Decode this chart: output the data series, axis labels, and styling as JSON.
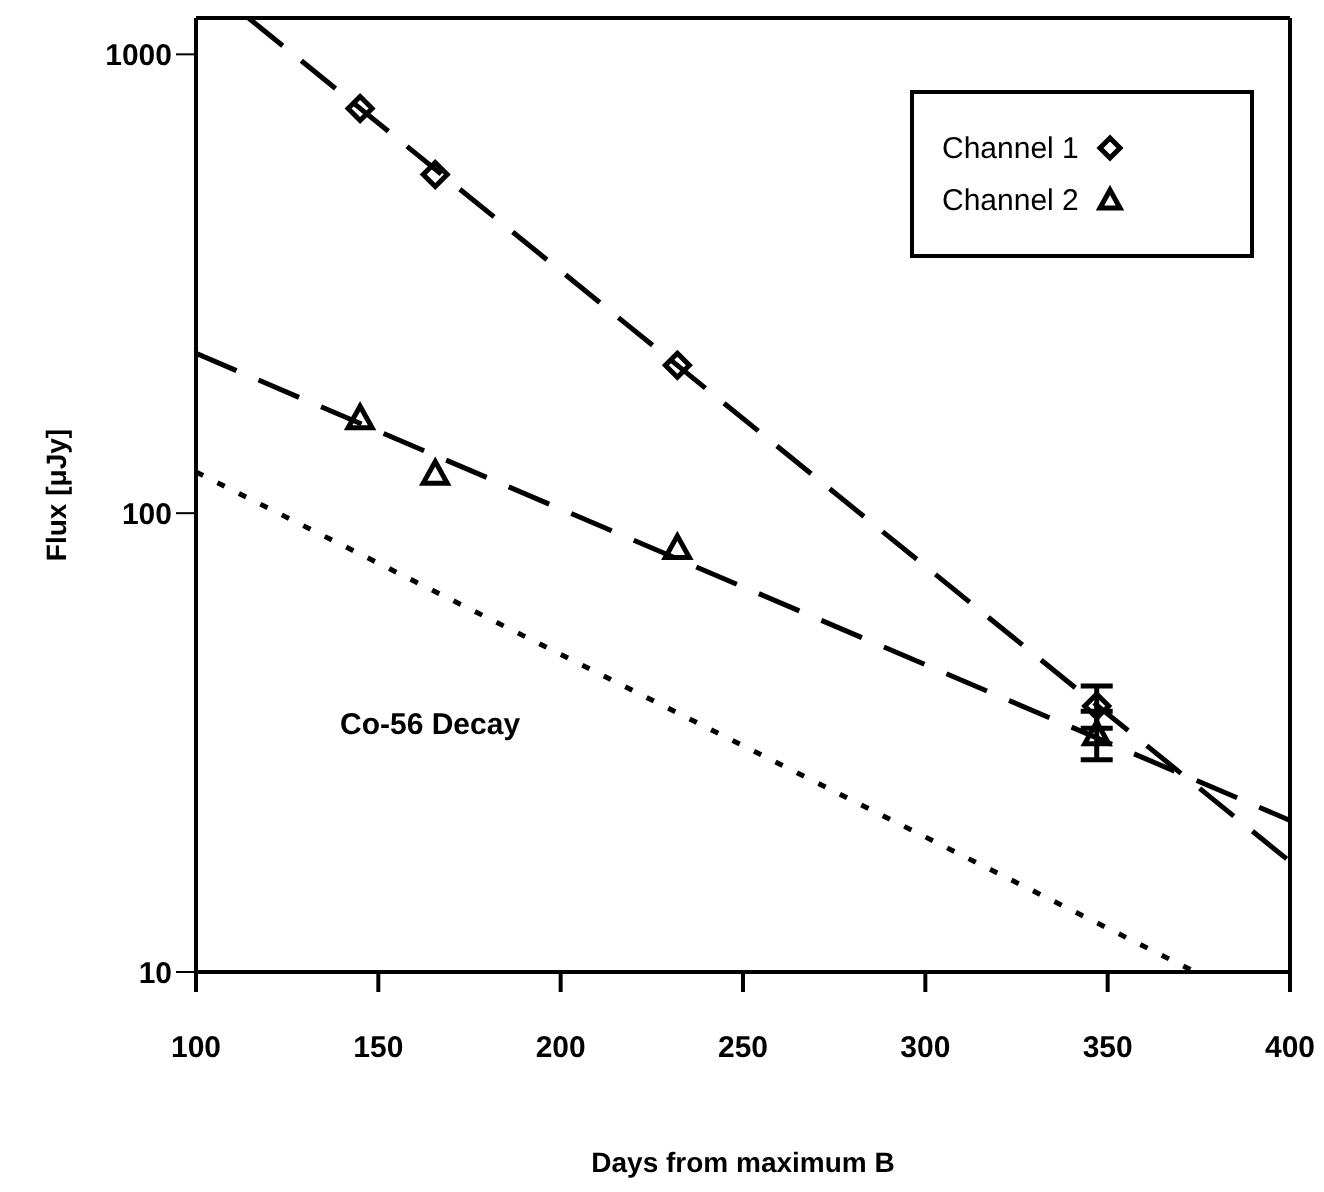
{
  "chart_data": {
    "type": "scatter",
    "xlabel": "Days from maximum B",
    "ylabel": "Flux [μJy]",
    "xlim": [
      100,
      400
    ],
    "xticks": [
      100,
      150,
      200,
      250,
      300,
      350,
      400
    ],
    "ylim": [
      10,
      1200
    ],
    "yticks": [
      10,
      100,
      1000
    ],
    "log": "y",
    "legend": "top right",
    "series": [
      {
        "name": "Channel 1",
        "marker": "diamond",
        "color": "#000000",
        "x": [
          145,
          165.6,
          232,
          347
        ],
        "values": [
          762,
          547,
          210,
          38
        ],
        "errors": [
          null,
          null,
          null,
          4
        ]
      },
      {
        "name": "Channel 2",
        "marker": "triangle",
        "color": "#000000",
        "x": [
          145,
          165.6,
          232,
          347
        ],
        "values": [
          161,
          122,
          84,
          33
        ],
        "errors": [
          null,
          null,
          null,
          4
        ]
      },
      {
        "type": "line",
        "marker": "none",
        "line_style": "dashed",
        "color": "#000000",
        "x": [
          114.4,
          400
        ],
        "values": [
          1200,
          17.4
        ]
      },
      {
        "type": "line",
        "marker": "none",
        "line_style": "dashed",
        "color": "#000000",
        "x": [
          100,
          400
        ],
        "values": [
          223,
          21.4
        ]
      },
      {
        "type": "line",
        "marker": "none",
        "line_style": "dotted",
        "color": "#000000",
        "x": [
          100,
          374
        ],
        "values": [
          123,
          10
        ]
      }
    ],
    "annotations": [
      "Co-56 Decay"
    ]
  }
}
